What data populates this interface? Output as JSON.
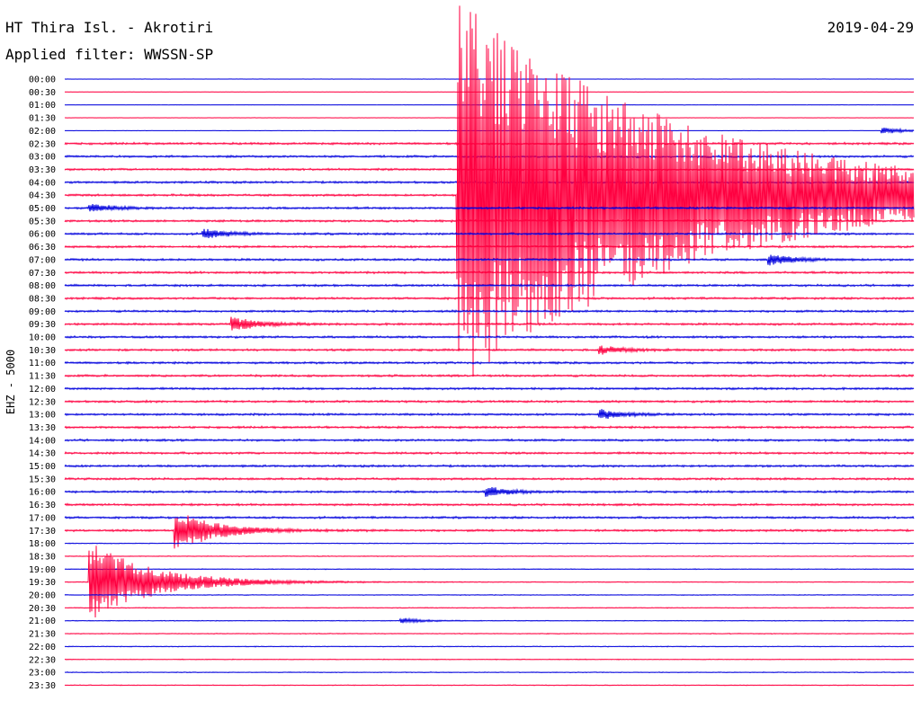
{
  "header": {
    "station": "HT Thira Isl. - Akrotiri",
    "date": "2019-04-29",
    "filter": "Applied filter: WWSSN-SP"
  },
  "channel_label": "EHZ - 5000",
  "colors": {
    "trace_a": "#0000dd",
    "trace_b": "#ff0040",
    "text": "#000000",
    "background": "#ffffff"
  },
  "chart_data": {
    "type": "line",
    "kind": "helicorder",
    "rows": [
      "00:00",
      "00:30",
      "01:00",
      "01:30",
      "02:00",
      "02:30",
      "03:00",
      "03:30",
      "04:00",
      "04:30",
      "05:00",
      "05:30",
      "06:00",
      "06:30",
      "07:00",
      "07:30",
      "08:00",
      "08:30",
      "09:00",
      "09:30",
      "10:00",
      "10:30",
      "11:00",
      "11:30",
      "12:00",
      "12:30",
      "13:00",
      "13:30",
      "14:00",
      "14:30",
      "15:00",
      "15:30",
      "16:00",
      "16:30",
      "17:00",
      "17:30",
      "18:00",
      "18:30",
      "19:00",
      "19:30",
      "20:00",
      "20:30",
      "21:00",
      "21:30",
      "22:00",
      "22:30",
      "23:00",
      "23:30"
    ],
    "row_minutes": 30,
    "row_colors_cycle": [
      "trace_a",
      "trace_b"
    ],
    "grid": false,
    "events": [
      {
        "row": "02:00",
        "minute": 29,
        "amplitude": 0.5
      },
      {
        "row": "04:30",
        "minute": 14,
        "amplitude": 30
      },
      {
        "row": "05:00",
        "minute": 1,
        "amplitude": 0.6
      },
      {
        "row": "06:00",
        "minute": 5,
        "amplitude": 0.7
      },
      {
        "row": "07:00",
        "minute": 25,
        "amplitude": 0.8
      },
      {
        "row": "09:30",
        "minute": 6,
        "amplitude": 1.0
      },
      {
        "row": "10:30",
        "minute": 19,
        "amplitude": 0.6
      },
      {
        "row": "13:00",
        "minute": 19,
        "amplitude": 0.7
      },
      {
        "row": "16:00",
        "minute": 15,
        "amplitude": 0.7
      },
      {
        "row": "17:30",
        "minute": 4,
        "amplitude": 3.0
      },
      {
        "row": "19:30",
        "minute": 1,
        "amplitude": 6.0
      },
      {
        "row": "21:00",
        "minute": 12,
        "amplitude": 0.4
      }
    ]
  }
}
